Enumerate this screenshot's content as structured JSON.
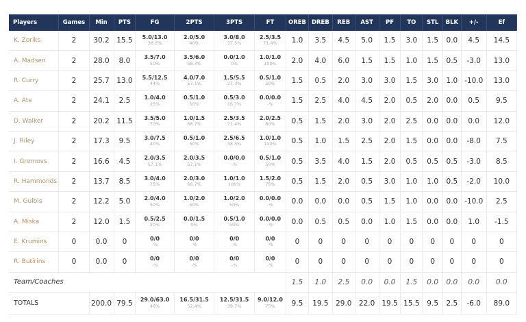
{
  "headers": {
    "players": "Players",
    "games": "Games",
    "min": "Min",
    "pts": "PTS",
    "fg": "FG",
    "two": "2PTS",
    "three": "3PTS",
    "ft": "FT",
    "oreb": "OREB",
    "dreb": "DREB",
    "reb": "REB",
    "ast": "AST",
    "pf": "PF",
    "to": "TO",
    "stl": "STL",
    "blk": "BLK",
    "pm": "+/-",
    "ef": "Ef"
  },
  "players": [
    {
      "name": "K. Zoriks",
      "games": "2",
      "min": "30.2",
      "pts": "15.5",
      "fg": "5.0/13.0",
      "fg_pct": "38.5%",
      "two": "2.0/5.0",
      "two_pct": "40%",
      "three": "3.0/8.0",
      "three_pct": "37.5%",
      "ft": "2.5/3.5",
      "ft_pct": "71.4%",
      "oreb": "1.0",
      "dreb": "3.5",
      "reb": "4.5",
      "ast": "5.0",
      "pf": "1.5",
      "to": "3.0",
      "stl": "1.5",
      "blk": "0.0",
      "pm": "4.5",
      "ef": "14.5"
    },
    {
      "name": "A. Madsen",
      "games": "2",
      "min": "28.0",
      "pts": "8.0",
      "fg": "3.5/7.0",
      "fg_pct": "50%",
      "two": "3.5/6.0",
      "two_pct": "58.3%",
      "three": "0.0/1.0",
      "three_pct": "0%",
      "ft": "1.0/1.0",
      "ft_pct": "100%",
      "oreb": "2.0",
      "dreb": "4.0",
      "reb": "6.0",
      "ast": "1.5",
      "pf": "1.5",
      "to": "1.0",
      "stl": "1.5",
      "blk": "0.5",
      "pm": "-3.0",
      "ef": "13.0"
    },
    {
      "name": "R. Curry",
      "games": "2",
      "min": "25.7",
      "pts": "13.0",
      "fg": "5.5/12.5",
      "fg_pct": "44%",
      "two": "4.0/7.0",
      "two_pct": "57.1%",
      "three": "1.5/5.5",
      "three_pct": "27.3%",
      "ft": "0.5/1.0",
      "ft_pct": "50%",
      "oreb": "1.5",
      "dreb": "0.5",
      "reb": "2.0",
      "ast": "3.0",
      "pf": "3.0",
      "to": "1.5",
      "stl": "3.0",
      "blk": "1.0",
      "pm": "-10.0",
      "ef": "13.0"
    },
    {
      "name": "A. Ate",
      "games": "2",
      "min": "24.1",
      "pts": "2.5",
      "fg": "1.0/4.0",
      "fg_pct": "25%",
      "two": "0.5/1.0",
      "two_pct": "50%",
      "three": "0.5/3.0",
      "three_pct": "16.7%",
      "ft": "0.0/0.0",
      "ft_pct": "-%",
      "oreb": "1.5",
      "dreb": "2.5",
      "reb": "4.0",
      "ast": "4.5",
      "pf": "2.0",
      "to": "0.5",
      "stl": "2.0",
      "blk": "0.0",
      "pm": "0.5",
      "ef": "9.5"
    },
    {
      "name": "D. Walker",
      "games": "2",
      "min": "20.2",
      "pts": "11.5",
      "fg": "3.5/5.0",
      "fg_pct": "70%",
      "two": "1.0/1.5",
      "two_pct": "66.7%",
      "three": "2.5/3.5",
      "three_pct": "71.4%",
      "ft": "2.0/2.5",
      "ft_pct": "80%",
      "oreb": "0.5",
      "dreb": "1.5",
      "reb": "2.0",
      "ast": "3.0",
      "pf": "2.0",
      "to": "2.5",
      "stl": "0.0",
      "blk": "0.0",
      "pm": "0.0",
      "ef": "12.0"
    },
    {
      "name": "J. Riley",
      "games": "2",
      "min": "17.3",
      "pts": "9.5",
      "fg": "3.0/7.5",
      "fg_pct": "40%",
      "two": "0.5/1.0",
      "two_pct": "50%",
      "three": "2.5/6.5",
      "three_pct": "38.5%",
      "ft": "1.0/1.0",
      "ft_pct": "100%",
      "oreb": "0.5",
      "dreb": "1.0",
      "reb": "1.5",
      "ast": "2.5",
      "pf": "2.0",
      "to": "1.5",
      "stl": "0.0",
      "blk": "0.0",
      "pm": "-8.0",
      "ef": "7.5"
    },
    {
      "name": "I. Gromovs",
      "games": "2",
      "min": "16.6",
      "pts": "4.5",
      "fg": "2.0/3.5",
      "fg_pct": "57.1%",
      "two": "2.0/3.5",
      "two_pct": "57.1%",
      "three": "0.0/0.0",
      "three_pct": "-%",
      "ft": "0.5/1.0",
      "ft_pct": "50%",
      "oreb": "0.5",
      "dreb": "3.5",
      "reb": "4.0",
      "ast": "1.5",
      "pf": "2.0",
      "to": "0.5",
      "stl": "0.5",
      "blk": "0.5",
      "pm": "-3.0",
      "ef": "8.5"
    },
    {
      "name": "R. Hammonds",
      "games": "2",
      "min": "13.7",
      "pts": "8.5",
      "fg": "3.0/4.0",
      "fg_pct": "75%",
      "two": "2.0/3.0",
      "two_pct": "66.7%",
      "three": "1.0/1.0",
      "three_pct": "100%",
      "ft": "1.5/2.0",
      "ft_pct": "75%",
      "oreb": "0.5",
      "dreb": "1.5",
      "reb": "2.0",
      "ast": "0.5",
      "pf": "3.0",
      "to": "1.0",
      "stl": "1.0",
      "blk": "0.5",
      "pm": "-2.0",
      "ef": "10.0"
    },
    {
      "name": "M. Gulbis",
      "games": "2",
      "min": "12.2",
      "pts": "5.0",
      "fg": "2.0/4.0",
      "fg_pct": "50%",
      "two": "1.0/2.0",
      "two_pct": "50%",
      "three": "1.0/2.0",
      "three_pct": "50%",
      "ft": "0.0/0.0",
      "ft_pct": "-%",
      "oreb": "0.0",
      "dreb": "0.0",
      "reb": "0.0",
      "ast": "0.5",
      "pf": "1.5",
      "to": "1.0",
      "stl": "0.0",
      "blk": "0.0",
      "pm": "-10.0",
      "ef": "2.5"
    },
    {
      "name": "A. Miska",
      "games": "2",
      "min": "12.0",
      "pts": "1.5",
      "fg": "0.5/2.5",
      "fg_pct": "20%",
      "two": "0.0/1.5",
      "two_pct": "0%",
      "three": "0.5/1.0",
      "three_pct": "50%",
      "ft": "0.0/0.0",
      "ft_pct": "-%",
      "oreb": "0.0",
      "dreb": "0.5",
      "reb": "0.5",
      "ast": "0.0",
      "pf": "1.0",
      "to": "1.5",
      "stl": "0.0",
      "blk": "0.0",
      "pm": "1.0",
      "ef": "-1.5"
    },
    {
      "name": "E. Krumins",
      "games": "0",
      "min": "0.0",
      "pts": "0",
      "fg": "0/0",
      "fg_pct": "-%",
      "two": "0/0",
      "two_pct": "-%",
      "three": "0/0",
      "three_pct": "-%",
      "ft": "0/0",
      "ft_pct": "-%",
      "oreb": "0",
      "dreb": "0",
      "reb": "0",
      "ast": "0",
      "pf": "0",
      "to": "0",
      "stl": "0",
      "blk": "0",
      "pm": "0",
      "ef": "0"
    },
    {
      "name": "R. Butirins",
      "games": "0",
      "min": "0.0",
      "pts": "0",
      "fg": "0/0",
      "fg_pct": "-%",
      "two": "0/0",
      "two_pct": "-%",
      "three": "0/0",
      "three_pct": "-%",
      "ft": "0/0",
      "ft_pct": "-%",
      "oreb": "0",
      "dreb": "0",
      "reb": "0",
      "ast": "0",
      "pf": "0",
      "to": "0",
      "stl": "0",
      "blk": "0",
      "pm": "0",
      "ef": "0"
    }
  ],
  "team": {
    "label": "Team/Coaches",
    "oreb": "1.5",
    "dreb": "1.0",
    "reb": "2.5",
    "ast": "0.0",
    "pf": "0.0",
    "to": "1.5",
    "stl": "0.0",
    "blk": "0.0",
    "pm": "0.0",
    "ef": "0.0"
  },
  "totals": {
    "label": "TOTALS",
    "min": "200.0",
    "pts": "79.5",
    "fg": "29.0/63.0",
    "fg_pct": "46%",
    "two": "16.5/31.5",
    "two_pct": "52.4%",
    "three": "12.5/31.5",
    "three_pct": "39.7%",
    "ft": "9.0/12.0",
    "ft_pct": "75%",
    "oreb": "9.5",
    "dreb": "19.5",
    "reb": "29.0",
    "ast": "22.0",
    "pf": "19.5",
    "to": "15.5",
    "stl": "9.5",
    "blk": "2.5",
    "pm": "-6.0",
    "ef": "89.0"
  }
}
